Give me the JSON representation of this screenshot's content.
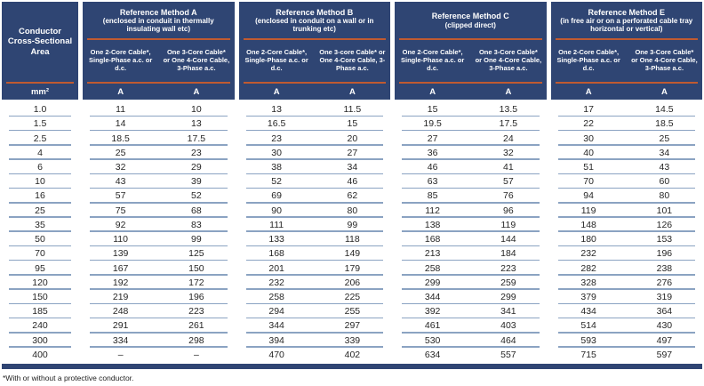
{
  "table": {
    "corner": {
      "title": "Conductor Cross-Sectional Area",
      "unit": "mm²"
    },
    "unit_symbol": "A",
    "methods": [
      {
        "title": "Reference Method A",
        "subtitle": "(enclosed in conduit in thermally insulating wall etc)",
        "col1": "One 2-Core Cable*, Single-Phase a.c. or d.c.",
        "col2": "One 3-Core Cable* or One 4-Core Cable, 3-Phase a.c.",
        "unit": "A"
      },
      {
        "title": "Reference Method B",
        "subtitle": "(enclosed in conduit on a wall or in trunking etc)",
        "col1": "One 2-Core Cable*, Single-Phase a.c. or d.c.",
        "col2": "One 3-core Cable* or One 4-Core Cable, 3-Phase a.c.",
        "unit": "A"
      },
      {
        "title": "Reference Method C",
        "subtitle": "(clipped direct)",
        "col1": "One 2-Core Cable*, Single-Phase a.c. or d.c.",
        "col2": "One 3-Core Cable* or One 4-Core Cable, 3-Phase a.c.",
        "unit": "A"
      },
      {
        "title": "Reference Method E",
        "subtitle": "(in free air or on a perforated cable tray horizontal or vertical)",
        "col1": "One 2-Core Cable*, Single-Phase a.c. or d.c.",
        "col2": "One 3-Core Cable* or One 4-Core Cable, 3-Phase a.c.",
        "unit": "A"
      }
    ],
    "rows": [
      {
        "area": "1.0",
        "values": [
          "11",
          "10",
          "13",
          "11.5",
          "15",
          "13.5",
          "17",
          "14.5"
        ]
      },
      {
        "area": "1.5",
        "values": [
          "14",
          "13",
          "16.5",
          "15",
          "19.5",
          "17.5",
          "22",
          "18.5"
        ]
      },
      {
        "area": "2.5",
        "values": [
          "18.5",
          "17.5",
          "23",
          "20",
          "27",
          "24",
          "30",
          "25"
        ]
      },
      {
        "area": "4",
        "values": [
          "25",
          "23",
          "30",
          "27",
          "36",
          "32",
          "40",
          "34"
        ]
      },
      {
        "area": "6",
        "values": [
          "32",
          "29",
          "38",
          "34",
          "46",
          "41",
          "51",
          "43"
        ]
      },
      {
        "area": "10",
        "values": [
          "43",
          "39",
          "52",
          "46",
          "63",
          "57",
          "70",
          "60"
        ]
      },
      {
        "area": "16",
        "values": [
          "57",
          "52",
          "69",
          "62",
          "85",
          "76",
          "94",
          "80"
        ]
      },
      {
        "area": "25",
        "values": [
          "75",
          "68",
          "90",
          "80",
          "112",
          "96",
          "119",
          "101"
        ]
      },
      {
        "area": "35",
        "values": [
          "92",
          "83",
          "111",
          "99",
          "138",
          "119",
          "148",
          "126"
        ]
      },
      {
        "area": "50",
        "values": [
          "110",
          "99",
          "133",
          "118",
          "168",
          "144",
          "180",
          "153"
        ]
      },
      {
        "area": "70",
        "values": [
          "139",
          "125",
          "168",
          "149",
          "213",
          "184",
          "232",
          "196"
        ]
      },
      {
        "area": "95",
        "values": [
          "167",
          "150",
          "201",
          "179",
          "258",
          "223",
          "282",
          "238"
        ]
      },
      {
        "area": "120",
        "values": [
          "192",
          "172",
          "232",
          "206",
          "299",
          "259",
          "328",
          "276"
        ]
      },
      {
        "area": "150",
        "values": [
          "219",
          "196",
          "258",
          "225",
          "344",
          "299",
          "379",
          "319"
        ]
      },
      {
        "area": "185",
        "values": [
          "248",
          "223",
          "294",
          "255",
          "392",
          "341",
          "434",
          "364"
        ]
      },
      {
        "area": "240",
        "values": [
          "291",
          "261",
          "344",
          "297",
          "461",
          "403",
          "514",
          "430"
        ]
      },
      {
        "area": "300",
        "values": [
          "334",
          "298",
          "394",
          "339",
          "530",
          "464",
          "593",
          "497"
        ]
      },
      {
        "area": "400",
        "values": [
          "–",
          "–",
          "470",
          "402",
          "634",
          "557",
          "715",
          "597"
        ]
      }
    ],
    "footnote": "*With or without a protective conductor."
  },
  "colors": {
    "header_navy": "#2f4573",
    "rule_orange": "#c05a31",
    "row_line_blue": "#8ba3c2"
  }
}
